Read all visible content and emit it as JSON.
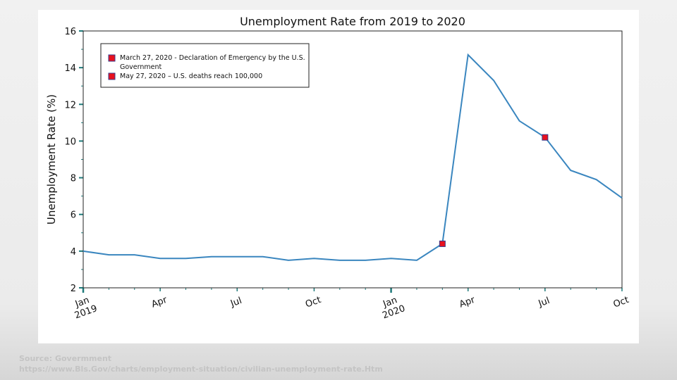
{
  "source": {
    "label": "Source: Govermment",
    "url": "https://www.Bls.Gov/charts/employment-situation/civilian-unemployment-rate.Htm"
  },
  "chart_data": {
    "type": "line",
    "title": "Unemployment Rate from 2019 to 2020",
    "xlabel": "",
    "ylabel": "Unemployment Rate (%)",
    "ylim": [
      2,
      16
    ],
    "yticks": [
      "2",
      "4",
      "6",
      "8",
      "10",
      "12",
      "14",
      "16"
    ],
    "xlim": [
      "2019-01",
      "2020-10"
    ],
    "xticks": [
      {
        "month": "2019-01",
        "label": [
          "Jan",
          "2019"
        ],
        "major": true
      },
      {
        "month": "2019-04",
        "label": [
          "Apr"
        ],
        "major": false
      },
      {
        "month": "2019-07",
        "label": [
          "Jul"
        ],
        "major": false
      },
      {
        "month": "2019-10",
        "label": [
          "Oct"
        ],
        "major": false
      },
      {
        "month": "2020-01",
        "label": [
          "Jan",
          "2020"
        ],
        "major": true
      },
      {
        "month": "2020-04",
        "label": [
          "Apr"
        ],
        "major": false
      },
      {
        "month": "2020-07",
        "label": [
          "Jul"
        ],
        "major": false
      },
      {
        "month": "2020-10",
        "label": [
          "Oct"
        ],
        "major": false
      }
    ],
    "grid": false,
    "series": [
      {
        "color": "#3a86bf",
        "x": [
          "2019-01",
          "2019-02",
          "2019-03",
          "2019-04",
          "2019-05",
          "2019-06",
          "2019-07",
          "2019-08",
          "2019-09",
          "2019-10",
          "2019-11",
          "2019-12",
          "2020-01",
          "2020-02",
          "2020-03",
          "2020-04",
          "2020-05",
          "2020-06",
          "2020-07",
          "2020-08",
          "2020-09",
          "2020-10"
        ],
        "values": [
          4.0,
          3.8,
          3.8,
          3.6,
          3.6,
          3.7,
          3.7,
          3.7,
          3.5,
          3.6,
          3.5,
          3.5,
          3.6,
          3.5,
          4.4,
          14.7,
          13.3,
          11.1,
          10.2,
          8.4,
          7.9,
          6.9
        ]
      }
    ],
    "markers": [
      {
        "x": "2020-03",
        "y": 4.4,
        "color": "#e8101e"
      },
      {
        "x": "2020-07",
        "y": 10.2,
        "color": "#e8101e"
      }
    ],
    "legend": {
      "placement": "top-left",
      "entries": [
        {
          "color": "#e8101e",
          "label": [
            "March 27, 2020 - Declaration of Emergency by the U.S.",
            "Government"
          ]
        },
        {
          "color": "#e8101e",
          "label": [
            "May 27, 2020 – U.S. deaths reach 100,000"
          ]
        }
      ]
    }
  }
}
